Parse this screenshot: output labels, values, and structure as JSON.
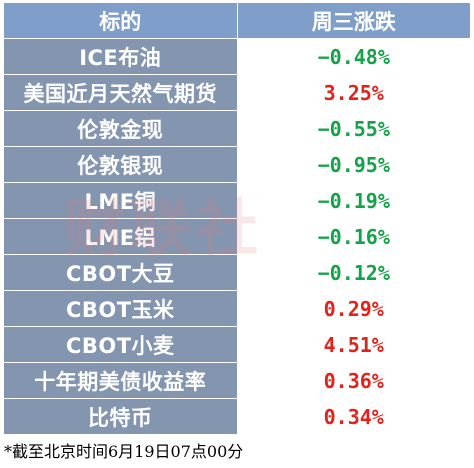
{
  "header": {
    "col_name": "标的",
    "col_change": "周三涨跌"
  },
  "rows": [
    {
      "name": "ICE布油",
      "change": "−0.48%",
      "direction": "down"
    },
    {
      "name": "美国近月天然气期货",
      "change": "3.25%",
      "direction": "up"
    },
    {
      "name": "伦敦金现",
      "change": "−0.55%",
      "direction": "down"
    },
    {
      "name": "伦敦银现",
      "change": "−0.95%",
      "direction": "down"
    },
    {
      "name": "LME铜",
      "change": "−0.19%",
      "direction": "down"
    },
    {
      "name": "LME铝",
      "change": "−0.16%",
      "direction": "down"
    },
    {
      "name": "CBOT大豆",
      "change": "−0.12%",
      "direction": "down"
    },
    {
      "name": "CBOT玉米",
      "change": "0.29%",
      "direction": "up"
    },
    {
      "name": "CBOT小麦",
      "change": "4.51%",
      "direction": "up"
    },
    {
      "name": "十年期美债收益率",
      "change": "0.36%",
      "direction": "up"
    },
    {
      "name": "比特币",
      "change": "0.34%",
      "direction": "up"
    }
  ],
  "watermark": "财联社",
  "footnote": "*截至北京时间6月19日07点00分",
  "colors": {
    "header_bg": "#7f9ec9",
    "name_cell_bg": "#8495b0",
    "up": "#e0231b",
    "down": "#15a34a"
  }
}
